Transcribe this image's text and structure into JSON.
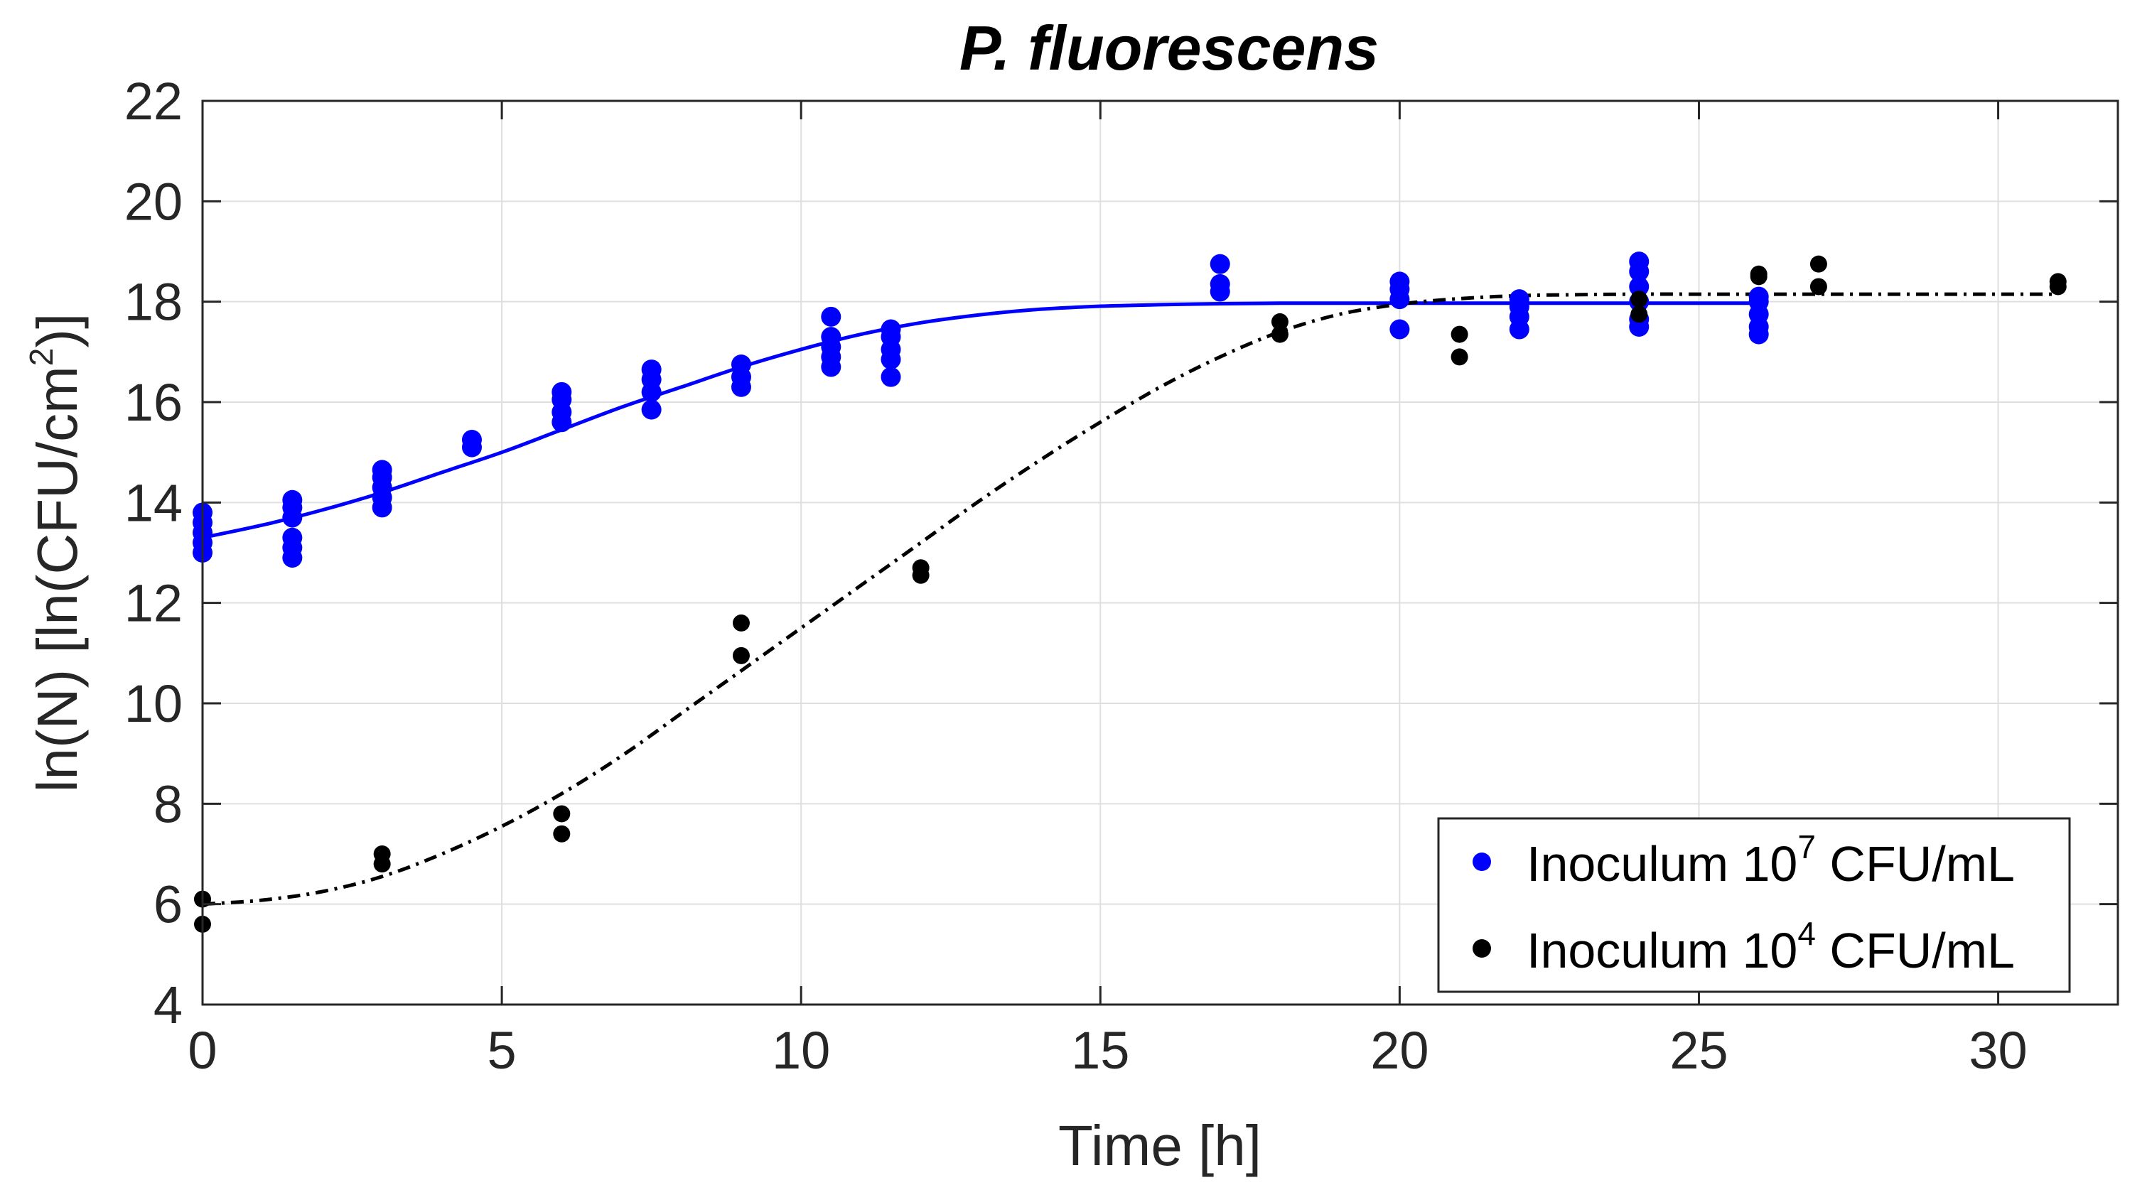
{
  "chart_data": {
    "type": "scatter",
    "title": "P. fluorescens",
    "xlabel": "Time [h]",
    "ylabel": {
      "prefix": "ln(N) [ln(CFU/cm",
      "superscript": "2",
      "suffix": ")]"
    },
    "xlim": [
      0,
      32
    ],
    "ylim": [
      4,
      22
    ],
    "xticks": [
      "0",
      "5",
      "10",
      "15",
      "20",
      "25",
      "30"
    ],
    "yticks": [
      "4",
      "6",
      "8",
      "10",
      "12",
      "14",
      "16",
      "18",
      "20",
      "22"
    ],
    "xtick_values": [
      0,
      5,
      10,
      15,
      20,
      25,
      30
    ],
    "ytick_values": [
      4,
      6,
      8,
      10,
      12,
      14,
      16,
      18,
      20,
      22
    ],
    "grid": true,
    "legend_position": "bottom-right",
    "series": [
      {
        "name": "Inoculum 10^7 CFU/mL",
        "legend_prefix": "Inoculum 10",
        "legend_sup": "7",
        "legend_suffix": " CFU/mL",
        "color": "#0000ff",
        "line_style": "solid",
        "points": [
          [
            0,
            13.0
          ],
          [
            0,
            13.2
          ],
          [
            0,
            13.4
          ],
          [
            0,
            13.6
          ],
          [
            0,
            13.8
          ],
          [
            1.5,
            12.9
          ],
          [
            1.5,
            13.1
          ],
          [
            1.5,
            13.3
          ],
          [
            1.5,
            13.7
          ],
          [
            1.5,
            13.9
          ],
          [
            1.5,
            14.05
          ],
          [
            3,
            13.9
          ],
          [
            3,
            14.1
          ],
          [
            3,
            14.3
          ],
          [
            3,
            14.5
          ],
          [
            3,
            14.65
          ],
          [
            4.5,
            15.1
          ],
          [
            4.5,
            15.25
          ],
          [
            6,
            15.6
          ],
          [
            6,
            15.8
          ],
          [
            6,
            16.05
          ],
          [
            6,
            16.2
          ],
          [
            7.5,
            15.85
          ],
          [
            7.5,
            16.2
          ],
          [
            7.5,
            16.45
          ],
          [
            7.5,
            16.65
          ],
          [
            9,
            16.3
          ],
          [
            9,
            16.5
          ],
          [
            9,
            16.75
          ],
          [
            10.5,
            16.7
          ],
          [
            10.5,
            16.9
          ],
          [
            10.5,
            17.1
          ],
          [
            10.5,
            17.3
          ],
          [
            10.5,
            17.7
          ],
          [
            11.5,
            16.5
          ],
          [
            11.5,
            16.85
          ],
          [
            11.5,
            17.05
          ],
          [
            11.5,
            17.3
          ],
          [
            11.5,
            17.45
          ],
          [
            17,
            18.2
          ],
          [
            17,
            18.35
          ],
          [
            17,
            18.75
          ],
          [
            20,
            17.45
          ],
          [
            20,
            18.05
          ],
          [
            20,
            18.25
          ],
          [
            20,
            18.4
          ],
          [
            22,
            17.45
          ],
          [
            22,
            17.7
          ],
          [
            22,
            17.9
          ],
          [
            22,
            18.05
          ],
          [
            24,
            17.5
          ],
          [
            24,
            17.65
          ],
          [
            24,
            18.0
          ],
          [
            24,
            18.3
          ],
          [
            24,
            18.6
          ],
          [
            24,
            18.8
          ],
          [
            26,
            17.35
          ],
          [
            26,
            17.5
          ],
          [
            26,
            17.75
          ],
          [
            26,
            18.0
          ],
          [
            26,
            18.1
          ]
        ],
        "fit": {
          "t": [
            0,
            1,
            2,
            3,
            4,
            5,
            6,
            7,
            8,
            9,
            10,
            11,
            12,
            13,
            14,
            15,
            16,
            17,
            18,
            19,
            20,
            21,
            22,
            23,
            24,
            25,
            26
          ],
          "y": [
            13.3,
            13.55,
            13.85,
            14.2,
            14.6,
            15.0,
            15.45,
            15.9,
            16.3,
            16.7,
            17.05,
            17.35,
            17.58,
            17.74,
            17.85,
            17.91,
            17.94,
            17.96,
            17.97,
            17.97,
            17.97,
            17.97,
            17.97,
            17.97,
            17.97,
            17.97,
            17.97
          ]
        }
      },
      {
        "name": "Inoculum 10^4 CFU/mL",
        "legend_prefix": "Inoculum 10",
        "legend_sup": "4",
        "legend_suffix": " CFU/mL",
        "color": "#000000",
        "line_style": "dashdot",
        "points": [
          [
            0,
            5.6
          ],
          [
            0,
            6.1
          ],
          [
            3,
            6.8
          ],
          [
            3,
            7.0
          ],
          [
            6,
            7.4
          ],
          [
            6,
            7.8
          ],
          [
            9,
            10.95
          ],
          [
            9,
            11.6
          ],
          [
            12,
            12.55
          ],
          [
            12,
            12.7
          ],
          [
            18,
            17.35
          ],
          [
            18,
            17.6
          ],
          [
            21,
            16.9
          ],
          [
            21,
            17.35
          ],
          [
            24,
            17.75
          ],
          [
            24,
            18.05
          ],
          [
            26,
            18.5
          ],
          [
            26,
            18.55
          ],
          [
            27,
            18.3
          ],
          [
            27,
            18.75
          ],
          [
            31,
            18.3
          ],
          [
            31,
            18.4
          ]
        ],
        "fit": {
          "t": [
            0,
            1,
            2,
            3,
            4,
            5,
            6,
            7,
            8,
            9,
            10,
            11,
            12,
            13,
            14,
            15,
            16,
            17,
            18,
            19,
            20,
            21,
            22,
            23,
            24,
            25,
            26,
            27,
            28,
            29,
            30,
            31
          ],
          "y": [
            6.0,
            6.08,
            6.25,
            6.55,
            7.0,
            7.55,
            8.2,
            8.95,
            9.8,
            10.65,
            11.5,
            12.35,
            13.2,
            14.05,
            14.85,
            15.6,
            16.3,
            16.9,
            17.4,
            17.75,
            17.95,
            18.06,
            18.12,
            18.14,
            18.15,
            18.15,
            18.15,
            18.15,
            18.15,
            18.15,
            18.15,
            18.15
          ]
        }
      }
    ]
  }
}
